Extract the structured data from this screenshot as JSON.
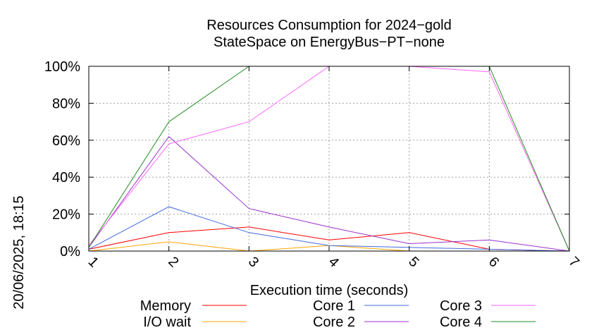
{
  "chart_data": {
    "type": "line",
    "title": "Resources Consumption for 2024−gold",
    "subtitle": "StateSpace on EnergyBus−PT−none",
    "xlabel": "Execution time (seconds)",
    "ylabel": "",
    "side_label": "20/06/2025, 18:15",
    "x": [
      1,
      2,
      3,
      4,
      5,
      6,
      7
    ],
    "x_tick_labels": [
      "1",
      "2",
      "3",
      "4",
      "5",
      "6",
      "7"
    ],
    "xlim": [
      1,
      7
    ],
    "ylim": [
      0,
      100
    ],
    "y_ticks": [
      0,
      20,
      40,
      60,
      80,
      100
    ],
    "y_tick_labels": [
      "0%",
      "20%",
      "40%",
      "60%",
      "80%",
      "100%"
    ],
    "grid": true,
    "legend_position": "bottom",
    "series": [
      {
        "name": "Memory",
        "color": "#ff0000",
        "values": [
          1,
          10,
          13,
          6,
          10,
          1,
          0
        ]
      },
      {
        "name": "I/O wait",
        "color": "#ffa500",
        "values": [
          0,
          5,
          0,
          3,
          0,
          0,
          0
        ]
      },
      {
        "name": "Core 1",
        "color": "#4169e1",
        "values": [
          1,
          24,
          10,
          3,
          2,
          1,
          0
        ]
      },
      {
        "name": "Core 2",
        "color": "#9932cc",
        "values": [
          2,
          62,
          23,
          13,
          4,
          6,
          0
        ]
      },
      {
        "name": "Core 3",
        "color": "#ff66ff",
        "values": [
          3,
          58,
          70,
          100,
          100,
          97,
          0
        ]
      },
      {
        "name": "Core 4",
        "color": "#228b22",
        "values": [
          2,
          70,
          100,
          100,
          100,
          100,
          0
        ]
      }
    ]
  }
}
